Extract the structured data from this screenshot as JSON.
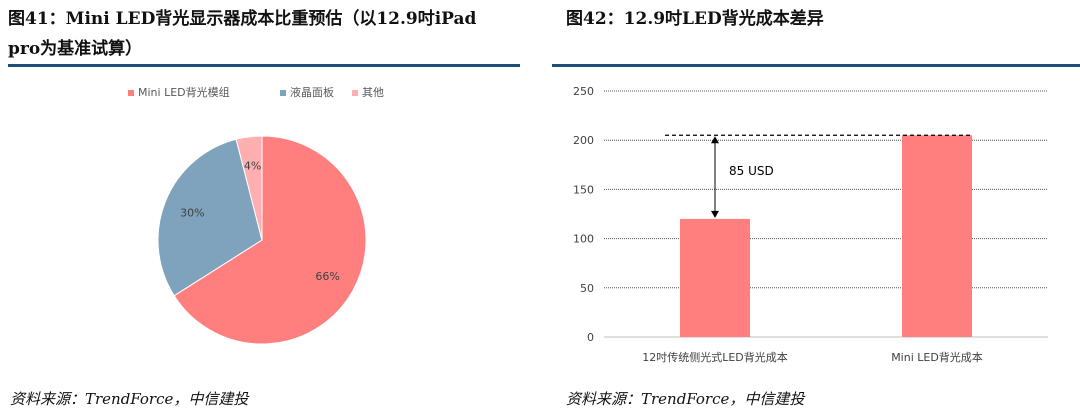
{
  "left": {
    "title": "图41：Mini LED背光显示器成本比重预估（以12.9吋iPad pro为基准试算）",
    "source": "资料来源：TrendForce，中信建投",
    "colors": {
      "mini_led": "#ff7f7f",
      "lcd": "#7fa3bd",
      "other": "#ffafaf"
    }
  },
  "right": {
    "title": "图42：12.9吋LED背光成本差异",
    "source": "资料来源：TrendForce，中信建投",
    "annotation": "85 USD",
    "colors": {
      "bar": "#ff7f7f",
      "grid": "#555555"
    }
  },
  "chart_data": [
    {
      "type": "pie",
      "title": "Mini LED背光显示器成本比重预估（以12.9吋iPad pro为基准试算）",
      "legend_position": "top",
      "labels": [
        "Mini LED背光模组",
        "液晶面板",
        "其他"
      ],
      "values": [
        66,
        30,
        4
      ],
      "value_labels": [
        "66%",
        "30%",
        "4%"
      ]
    },
    {
      "type": "bar",
      "title": "12.9吋LED背光成本差异",
      "categories": [
        "12吋传统侧光式LED背光成本",
        "Mini LED背光成本"
      ],
      "values": [
        120,
        205
      ],
      "ylim": [
        0,
        250
      ],
      "yticks": [
        0,
        50,
        100,
        150,
        200,
        250
      ],
      "grid": true,
      "annotation": {
        "text": "85 USD",
        "from": 120,
        "to": 205
      }
    }
  ]
}
